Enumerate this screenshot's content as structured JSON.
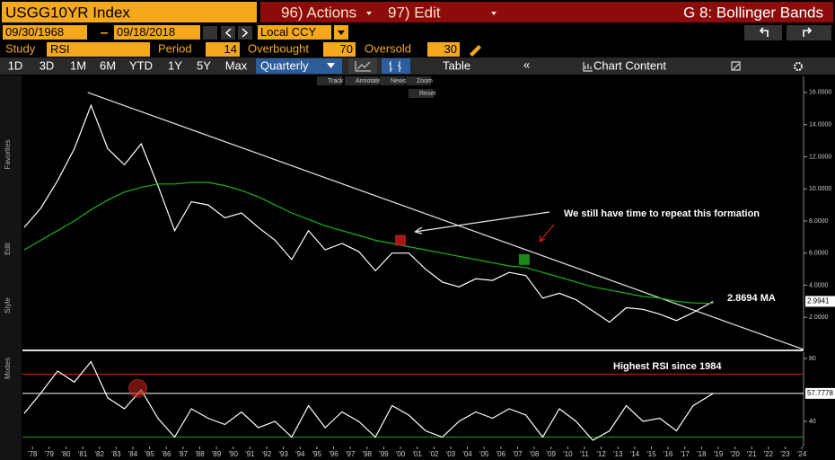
{
  "header": {
    "ticker": "USGG10YR Index",
    "actions": "96) Actions",
    "edit": "97) Edit",
    "title": "G 8: Bollinger Bands"
  },
  "range": {
    "start": "09/30/1968",
    "end": "09/18/2018",
    "currency": "Local CCY"
  },
  "study": {
    "label": "Study",
    "name": "RSI",
    "period_label": "Period",
    "period": 14,
    "overbought_label": "Overbought",
    "overbought": 70,
    "oversold_label": "Oversold",
    "oversold": 30
  },
  "toolbar": {
    "periods": [
      "1D",
      "3D",
      "1M",
      "6M",
      "YTD",
      "1Y",
      "5Y",
      "Max"
    ],
    "frequency": "Quarterly",
    "table": "Table",
    "chart_content": "Chart Content"
  },
  "chart_tools": [
    "Track",
    "Annotate",
    "News",
    "Zoom",
    "Reset"
  ],
  "sidebar": [
    "Favorites",
    "Edit",
    "Style",
    "Modes"
  ],
  "chart_data": [
    {
      "type": "line",
      "xlim": [
        1977.4,
        2024.1
      ],
      "ylim": [
        0,
        17
      ],
      "yticks": [
        {
          "value": 2,
          "label": "2.0000"
        },
        {
          "value": 4,
          "label": "4.0000"
        },
        {
          "value": 6,
          "label": "6.0000"
        },
        {
          "value": 8,
          "label": "8.0000"
        },
        {
          "value": 10,
          "label": "10.0000"
        },
        {
          "value": 12,
          "label": "12.0000"
        },
        {
          "value": 14,
          "label": "14.0000"
        },
        {
          "value": 16,
          "label": "16.0000"
        }
      ],
      "x": [
        1977.5,
        1978.5,
        1979.5,
        1980.5,
        1981.5,
        1982.5,
        1983.5,
        1984.5,
        1985.5,
        1986.5,
        1987.5,
        1988.5,
        1989.5,
        1990.5,
        1991.5,
        1992.5,
        1993.5,
        1994.5,
        1995.5,
        1996.5,
        1997.5,
        1998.5,
        1999.5,
        2000.5,
        2001.5,
        2002.5,
        2003.5,
        2004.5,
        2005.5,
        2006.5,
        2007.5,
        2008.5,
        2009.5,
        2010.5,
        2011.5,
        2012.5,
        2013.5,
        2014.5,
        2015.5,
        2016.5,
        2017.5,
        2018.7
      ],
      "series": [
        {
          "color": "#ffffff",
          "values": [
            7.6,
            8.8,
            10.5,
            12.5,
            15.2,
            12.5,
            11.5,
            12.8,
            10.2,
            7.4,
            9.2,
            9.0,
            8.2,
            8.5,
            7.6,
            6.8,
            5.6,
            7.4,
            6.2,
            6.6,
            6.1,
            4.9,
            6.0,
            6.0,
            5.0,
            4.2,
            3.9,
            4.4,
            4.3,
            4.8,
            4.6,
            3.2,
            3.5,
            3.1,
            2.4,
            1.7,
            2.6,
            2.5,
            2.2,
            1.8,
            2.3,
            2.9941
          ],
          "last_value_label": "2.9941"
        },
        {
          "color": "#19b319",
          "values": [
            6.2,
            6.8,
            7.4,
            8.0,
            8.7,
            9.3,
            9.8,
            10.1,
            10.3,
            10.3,
            10.4,
            10.4,
            10.2,
            9.9,
            9.5,
            9.0,
            8.5,
            8.1,
            7.7,
            7.4,
            7.1,
            6.8,
            6.6,
            6.4,
            6.2,
            6.0,
            5.8,
            5.6,
            5.4,
            5.2,
            5.1,
            4.8,
            4.5,
            4.2,
            3.9,
            3.7,
            3.5,
            3.3,
            3.2,
            3.0,
            2.9,
            2.8694
          ]
        }
      ],
      "trendline": {
        "x": [
          1981.3,
          2024.1
        ],
        "y": [
          16,
          0
        ],
        "color": "#d8d8d8"
      },
      "markers": [
        {
          "x": 2000.0,
          "y": 6.8,
          "color": "#c0201a"
        },
        {
          "x": 2007.4,
          "y": 5.6,
          "color": "#1fa01f"
        }
      ],
      "annotations": [
        "We still have time to repeat this formation",
        "2.8694 MA"
      ]
    },
    {
      "type": "line",
      "xlim": [
        1977.4,
        2024.1
      ],
      "ylim": [
        24,
        84
      ],
      "yticks": [
        40,
        80
      ],
      "x": [
        1977.5,
        1978.5,
        1979.5,
        1980.5,
        1981.5,
        1982.5,
        1983.5,
        1984.5,
        1985.5,
        1986.5,
        1987.5,
        1988.5,
        1989.5,
        1990.5,
        1991.5,
        1992.5,
        1993.5,
        1994.5,
        1995.5,
        1996.5,
        1997.5,
        1998.5,
        1999.5,
        2000.5,
        2001.5,
        2002.5,
        2003.5,
        2004.5,
        2005.5,
        2006.5,
        2007.5,
        2008.5,
        2009.5,
        2010.5,
        2011.5,
        2012.5,
        2013.5,
        2014.5,
        2015.5,
        2016.5,
        2017.5,
        2018.7
      ],
      "series": [
        {
          "color": "#ffffff",
          "values": [
            45,
            58,
            72,
            65,
            78,
            55,
            48,
            60,
            42,
            30,
            48,
            42,
            38,
            46,
            36,
            40,
            30,
            50,
            36,
            46,
            40,
            30,
            50,
            44,
            34,
            30,
            40,
            46,
            42,
            48,
            44,
            30,
            48,
            40,
            28,
            34,
            50,
            40,
            42,
            34,
            50,
            57.7778
          ],
          "last_value_label": "57.7778"
        }
      ],
      "markers": [
        {
          "x": 1984.3,
          "y": 61,
          "color": "#c0201a"
        }
      ],
      "annotations": [
        "Highest RSI since 1984"
      ],
      "xticks": [
        {
          "value": 1978,
          "label": "'78"
        },
        {
          "value": 1979,
          "label": "'79"
        },
        {
          "value": 1980,
          "label": "'80"
        },
        {
          "value": 1981,
          "label": "'81"
        },
        {
          "value": 1982,
          "label": "'82"
        },
        {
          "value": 1983,
          "label": "'83"
        },
        {
          "value": 1984,
          "label": "'84"
        },
        {
          "value": 1985,
          "label": "'85"
        },
        {
          "value": 1986,
          "label": "'86"
        },
        {
          "value": 1987,
          "label": "'87"
        },
        {
          "value": 1988,
          "label": "'88"
        },
        {
          "value": 1989,
          "label": "'89"
        },
        {
          "value": 1990,
          "label": "'90"
        },
        {
          "value": 1991,
          "label": "'91"
        },
        {
          "value": 1992,
          "label": "'92"
        },
        {
          "value": 1993,
          "label": "'93"
        },
        {
          "value": 1994,
          "label": "'94"
        },
        {
          "value": 1995,
          "label": "'95"
        },
        {
          "value": 1996,
          "label": "'96"
        },
        {
          "value": 1997,
          "label": "'97"
        },
        {
          "value": 1998,
          "label": "'98"
        },
        {
          "value": 1999,
          "label": "'99"
        },
        {
          "value": 2000,
          "label": "'00"
        },
        {
          "value": 2001,
          "label": "'01"
        },
        {
          "value": 2002,
          "label": "'02"
        },
        {
          "value": 2003,
          "label": "'03"
        },
        {
          "value": 2004,
          "label": "'04"
        },
        {
          "value": 2005,
          "label": "'05"
        },
        {
          "value": 2006,
          "label": "'06"
        },
        {
          "value": 2007,
          "label": "'07"
        },
        {
          "value": 2008,
          "label": "'08"
        },
        {
          "value": 2009,
          "label": "'09"
        },
        {
          "value": 2010,
          "label": "'10"
        },
        {
          "value": 2011,
          "label": "'11"
        },
        {
          "value": 2012,
          "label": "'12"
        },
        {
          "value": 2013,
          "label": "'13"
        },
        {
          "value": 2014,
          "label": "'14"
        },
        {
          "value": 2015,
          "label": "'15"
        },
        {
          "value": 2016,
          "label": "'16"
        },
        {
          "value": 2017,
          "label": "'17"
        },
        {
          "value": 2018,
          "label": "'18"
        },
        {
          "value": 2019,
          "label": "'19"
        },
        {
          "value": 2020,
          "label": "'20"
        },
        {
          "value": 2021,
          "label": "'21"
        },
        {
          "value": 2022,
          "label": "'22"
        },
        {
          "value": 2023,
          "label": "'23"
        },
        {
          "value": 2024,
          "label": "'24"
        }
      ]
    }
  ]
}
